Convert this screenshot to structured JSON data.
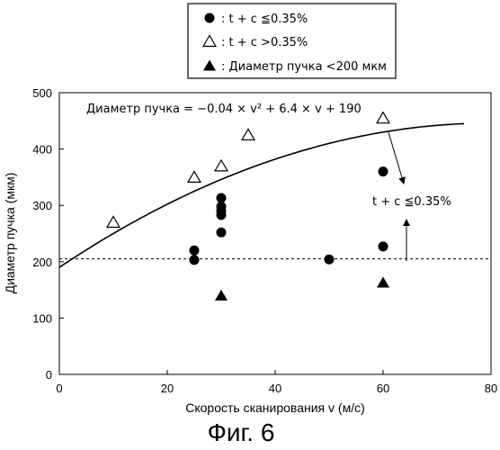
{
  "chart_data": {
    "type": "scatter",
    "xlabel": "Скорость сканирования v (м/с)",
    "ylabel": "Диаметр пучка (мкм)",
    "xlim": [
      0,
      80
    ],
    "ylim": [
      0,
      500
    ],
    "x_ticks": [
      "0",
      "20",
      "40",
      "60",
      "80"
    ],
    "y_ticks": [
      "0",
      "100",
      "200",
      "300",
      "400",
      "500"
    ],
    "grid": false,
    "legend_position": "top-center",
    "legend": [
      {
        "marker": "filled-circle",
        "label": ": t + c ≦0.35%"
      },
      {
        "marker": "open-triangle",
        "label": ": t + c >0.35%"
      },
      {
        "marker": "filled-triangle",
        "label": ": Диаметр пучка <200 мкм"
      }
    ],
    "series": [
      {
        "marker": "filled-circle",
        "points": [
          [
            25,
            220
          ],
          [
            25,
            203
          ],
          [
            30,
            313
          ],
          [
            30,
            298
          ],
          [
            30,
            290
          ],
          [
            30,
            283
          ],
          [
            30,
            252
          ],
          [
            50,
            204
          ],
          [
            60,
            360
          ],
          [
            60,
            227
          ]
        ]
      },
      {
        "marker": "open-triangle",
        "points": [
          [
            10,
            270
          ],
          [
            25,
            350
          ],
          [
            30,
            370
          ],
          [
            35,
            425
          ],
          [
            60,
            455
          ]
        ]
      },
      {
        "marker": "filled-triangle",
        "points": [
          [
            30,
            140
          ],
          [
            60,
            163
          ]
        ]
      }
    ],
    "curve": {
      "label": "Диаметр пучка = −0.04 × v² + 6.4 × v + 190",
      "coefficients": [
        -0.04,
        6.4,
        190
      ],
      "x_range": [
        0,
        75
      ]
    },
    "threshold_line": {
      "y": 205,
      "style": "dashed"
    },
    "annotation": "t + c ≦0.35%"
  },
  "caption": "Фиг. 6"
}
